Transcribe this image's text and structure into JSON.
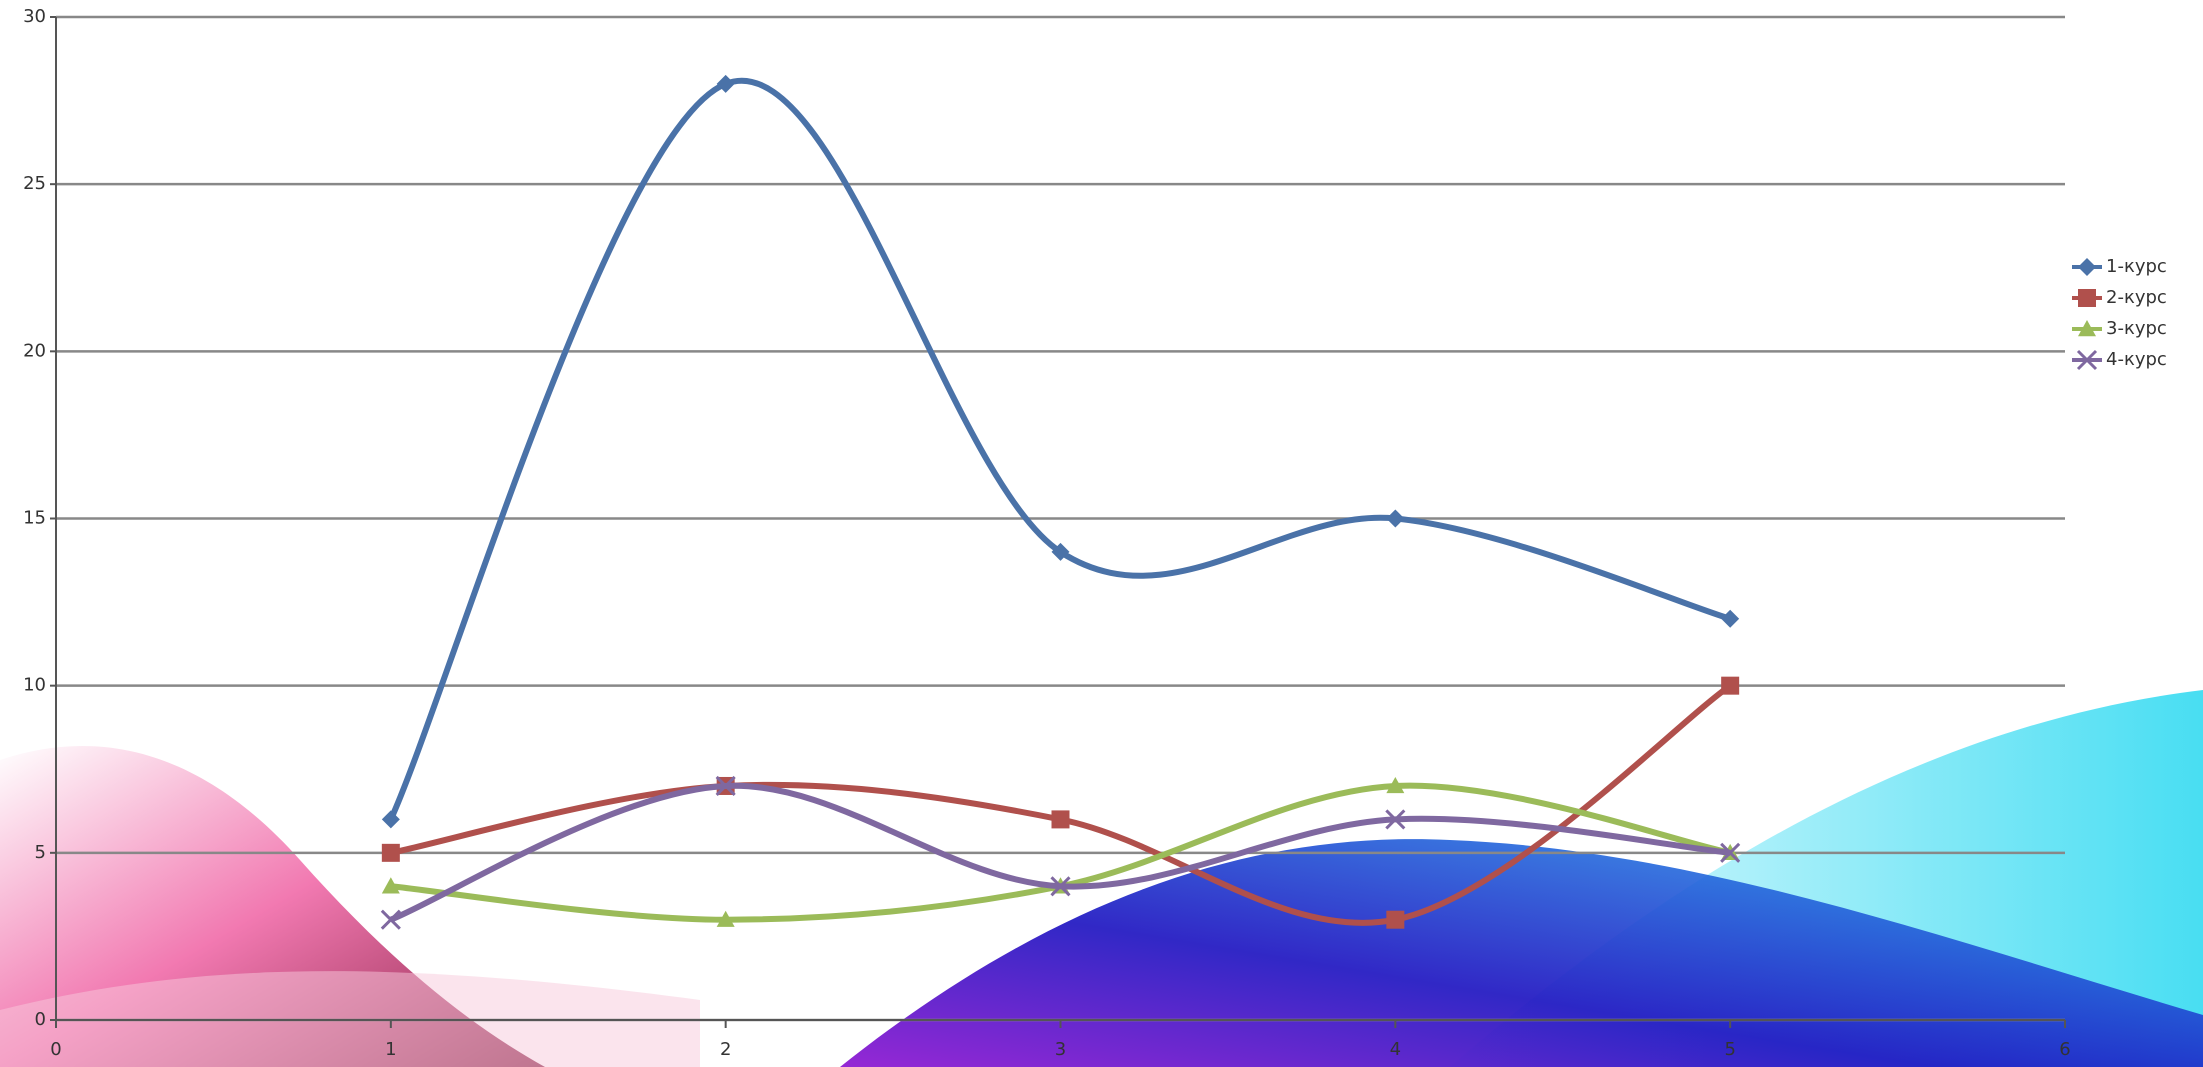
{
  "chart_data": {
    "type": "line",
    "x": [
      1,
      2,
      3,
      4,
      5
    ],
    "series": [
      {
        "name": "1-курс",
        "color": "#4a72a8",
        "marker": "diamond",
        "values": [
          6,
          28,
          14,
          15,
          12
        ]
      },
      {
        "name": "2-курс",
        "color": "#b0504c",
        "marker": "square",
        "values": [
          5,
          7,
          6,
          3,
          10
        ]
      },
      {
        "name": "3-курс",
        "color": "#9bbb59",
        "marker": "triangle",
        "values": [
          4,
          3,
          4,
          7,
          5
        ]
      },
      {
        "name": "4-курс",
        "color": "#7f68a0",
        "marker": "x",
        "values": [
          3,
          7,
          4,
          6,
          5
        ]
      }
    ],
    "xlim": [
      0,
      6
    ],
    "xticks": [
      0,
      1,
      2,
      3,
      4,
      5,
      6
    ],
    "ylim": [
      0,
      30
    ],
    "yticks": [
      0,
      5,
      10,
      15,
      20,
      25,
      30
    ],
    "grid": true,
    "smooth": true,
    "legend": "right"
  }
}
